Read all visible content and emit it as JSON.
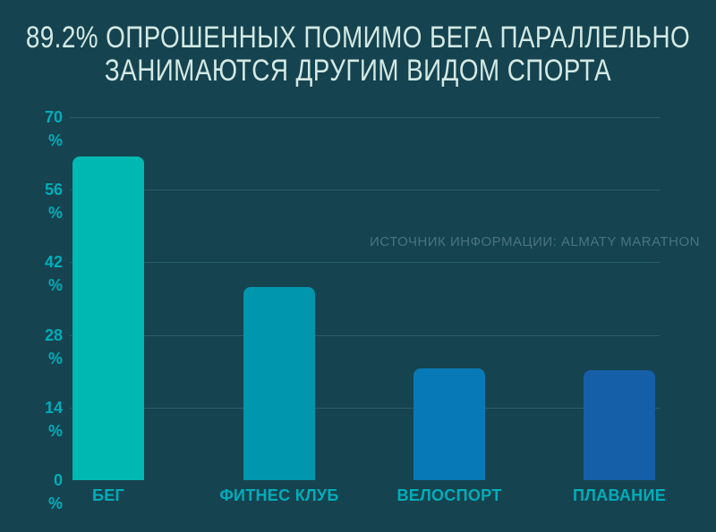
{
  "title_lines": [
    "89.2% ОПРОШЕННЫХ ПОМИМО БЕГА ПАРАЛЛЕЛЬНО",
    "ЗАНИМАЮТСЯ ДРУГИМ ВИДОМ СПОРТА"
  ],
  "source_note": "ИСТОЧНИК ИНФОРМАЦИИ: ALMATY MARATHON",
  "chart_data": {
    "type": "bar",
    "title": "89.2% ОПРОШЕННЫХ ПОМИМО БЕГА ПАРАЛЛЕЛЬНО ЗАНИМАЮТСЯ ДРУГИМ ВИДОМ СПОРТА",
    "source": "ИСТОЧНИК ИНФОРМАЦИИ: ALMATY MARATHON",
    "categories": [
      "БЕГ",
      "ФИТНЕС КЛУБ",
      "ВЕЛОСПОРТ",
      "ПЛАВАНИЕ"
    ],
    "values": [
      62.4,
      37.2,
      21.6,
      21.2
    ],
    "unit": "%",
    "y_ticks": [
      70,
      56,
      42,
      28,
      14,
      0
    ],
    "ylim": [
      0,
      70
    ],
    "grid": true,
    "legend": false,
    "bar_colors": [
      "#00b8b2",
      "#0096ae",
      "#0779b6",
      "#155fa9"
    ]
  },
  "colors": {
    "background": "#15434f",
    "title_text": "#d3e9e4",
    "axis_label": "#00adba",
    "gridline": "#2a5f69",
    "source_text": "#4b7380"
  }
}
